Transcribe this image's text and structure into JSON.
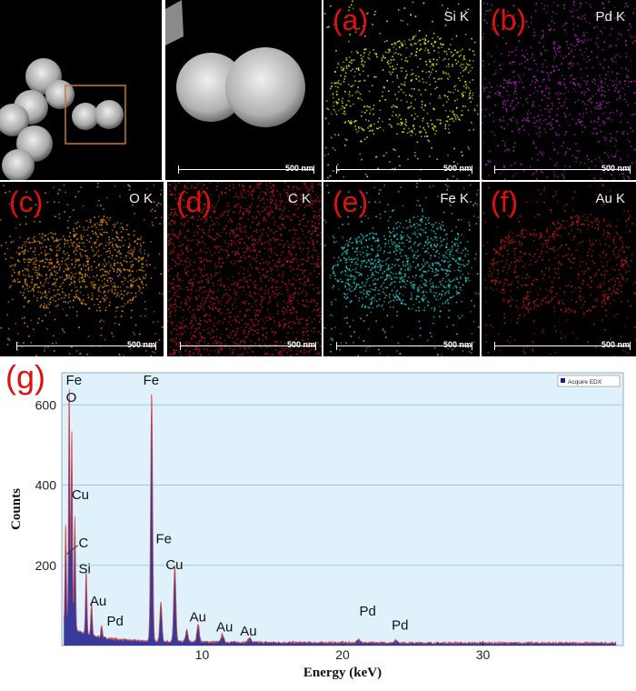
{
  "panels": [
    {
      "id": "overview",
      "letter": "",
      "element": "",
      "scale": ""
    },
    {
      "id": "haadf",
      "letter": "",
      "element": "",
      "scale": "500 nm"
    },
    {
      "id": "a",
      "letter": "(a)",
      "element": "Si K",
      "scale": "500 nm",
      "color": "#e8e31a"
    },
    {
      "id": "b",
      "letter": "(b)",
      "element": "Pd K",
      "scale": "500 nm",
      "color": "#b020c0"
    },
    {
      "id": "c",
      "letter": "(c)",
      "element": "O K",
      "scale": "500 nm",
      "color": "#e08a14"
    },
    {
      "id": "d",
      "letter": "(d)",
      "element": "C K",
      "scale": "500 nm",
      "color": "#c41414"
    },
    {
      "id": "e",
      "letter": "(e)",
      "element": "Fe K",
      "scale": "500 nm",
      "color": "#20c8c8"
    },
    {
      "id": "f",
      "letter": "(f)",
      "element": "Au K",
      "scale": "500 nm",
      "color": "#c01818"
    }
  ],
  "chart_label": "(g)",
  "chart_data": {
    "type": "line",
    "xlabel": "Energy (keV)",
    "ylabel": "Counts",
    "xlim": [
      0,
      40
    ],
    "ylim": [
      0,
      680
    ],
    "xticks": [
      10,
      20,
      30
    ],
    "yticks": [
      200,
      400,
      600
    ],
    "grid": true,
    "background": "#dff2fb",
    "line_color": "#1a1a8a",
    "legend": {
      "label": "Acquire EDX",
      "position": "top-right"
    },
    "series": [
      {
        "name": "Acquire EDX",
        "peaks": [
          {
            "x": 0.28,
            "y": 250
          },
          {
            "x": 0.53,
            "y": 605
          },
          {
            "x": 0.71,
            "y": 500
          },
          {
            "x": 0.93,
            "y": 280
          },
          {
            "x": 1.74,
            "y": 160
          },
          {
            "x": 2.12,
            "y": 80
          },
          {
            "x": 2.84,
            "y": 30
          },
          {
            "x": 6.4,
            "y": 620
          },
          {
            "x": 7.06,
            "y": 100
          },
          {
            "x": 8.05,
            "y": 190
          },
          {
            "x": 8.9,
            "y": 30
          },
          {
            "x": 9.71,
            "y": 45
          },
          {
            "x": 11.44,
            "y": 20
          },
          {
            "x": 13.38,
            "y": 12
          },
          {
            "x": 21.18,
            "y": 8
          },
          {
            "x": 23.8,
            "y": 6
          }
        ]
      }
    ],
    "annotations": [
      {
        "text": "Fe",
        "x": 0.3,
        "y": 650
      },
      {
        "text": "O",
        "x": 0.3,
        "y": 608
      },
      {
        "text": "Cu",
        "x": 0.7,
        "y": 365
      },
      {
        "text": "C",
        "x": 1.2,
        "y": 245
      },
      {
        "text": "Si",
        "x": 1.2,
        "y": 180
      },
      {
        "text": "Au",
        "x": 2.0,
        "y": 100
      },
      {
        "text": "Pd",
        "x": 3.2,
        "y": 50
      },
      {
        "text": "Fe",
        "x": 5.8,
        "y": 650
      },
      {
        "text": "Fe",
        "x": 6.7,
        "y": 255
      },
      {
        "text": "Cu",
        "x": 7.4,
        "y": 190
      },
      {
        "text": "Au",
        "x": 9.1,
        "y": 60
      },
      {
        "text": "Au",
        "x": 11.0,
        "y": 35
      },
      {
        "text": "Au",
        "x": 12.7,
        "y": 25
      },
      {
        "text": "Pd",
        "x": 21.2,
        "y": 75
      },
      {
        "text": "Pd",
        "x": 23.5,
        "y": 40
      }
    ]
  }
}
